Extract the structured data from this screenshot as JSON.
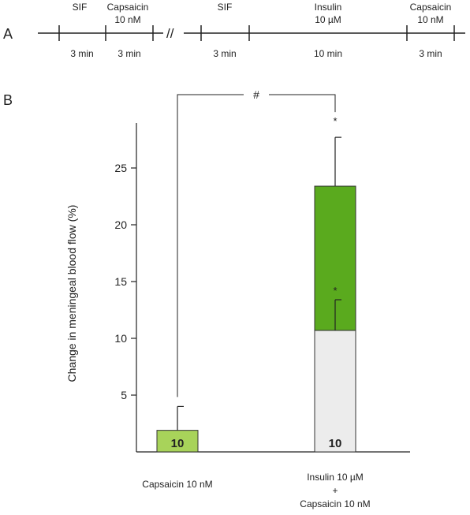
{
  "panel_labels": {
    "a": "A",
    "b": "B"
  },
  "timeline": {
    "segments_top": [
      {
        "text": [
          "SIF"
        ]
      },
      {
        "text": [
          "Capsaicin",
          "10 nM"
        ]
      },
      {
        "text": [
          "SIF"
        ]
      },
      {
        "text": [
          "Insulin",
          "10 µM"
        ]
      },
      {
        "text": [
          "Capsaicin",
          "10 nM"
        ]
      }
    ],
    "durations": [
      "3 min",
      "3 min",
      "3 min",
      "10 min",
      "3 min"
    ],
    "break_symbol": "//"
  },
  "chart_data": {
    "type": "bar",
    "ylabel": "Change in meningeal blood flow (%)",
    "xlabel": "",
    "ylim": [
      0,
      29
    ],
    "yticks": [
      5,
      10,
      15,
      20,
      25
    ],
    "categories": [
      "Capsaicin 10 nM",
      "Insulin 10 µM + Capsaicin 10 nM"
    ],
    "category_lines": [
      [
        "Capsaicin 10 nM"
      ],
      [
        "Insulin 10 µM",
        "+",
        "Capsaicin 10 nM"
      ]
    ],
    "bars": [
      {
        "category": "Capsaicin 10 nM",
        "segments": [
          {
            "value": 1.9,
            "color": "#a8d35a"
          }
        ],
        "total": 1.9,
        "error": 2.1,
        "n_label": "10"
      },
      {
        "category": "Insulin 10 µM + Capsaicin 10 nM",
        "segments": [
          {
            "value": 10.7,
            "color": "#ececec"
          },
          {
            "value": 12.7,
            "color": "#5aaa1e"
          }
        ],
        "total": 23.4,
        "error": 4.3,
        "n_label": "10",
        "inner_error": {
          "at": 10.7,
          "error": 2.7
        },
        "stars": [
          "*",
          "*"
        ]
      }
    ],
    "significance": {
      "label": "#",
      "between": [
        0,
        1
      ]
    },
    "colors": {
      "capsaicin": "#a8d35a",
      "insulin_increment": "#5aaa1e",
      "baseline_segment": "#ececec"
    }
  }
}
